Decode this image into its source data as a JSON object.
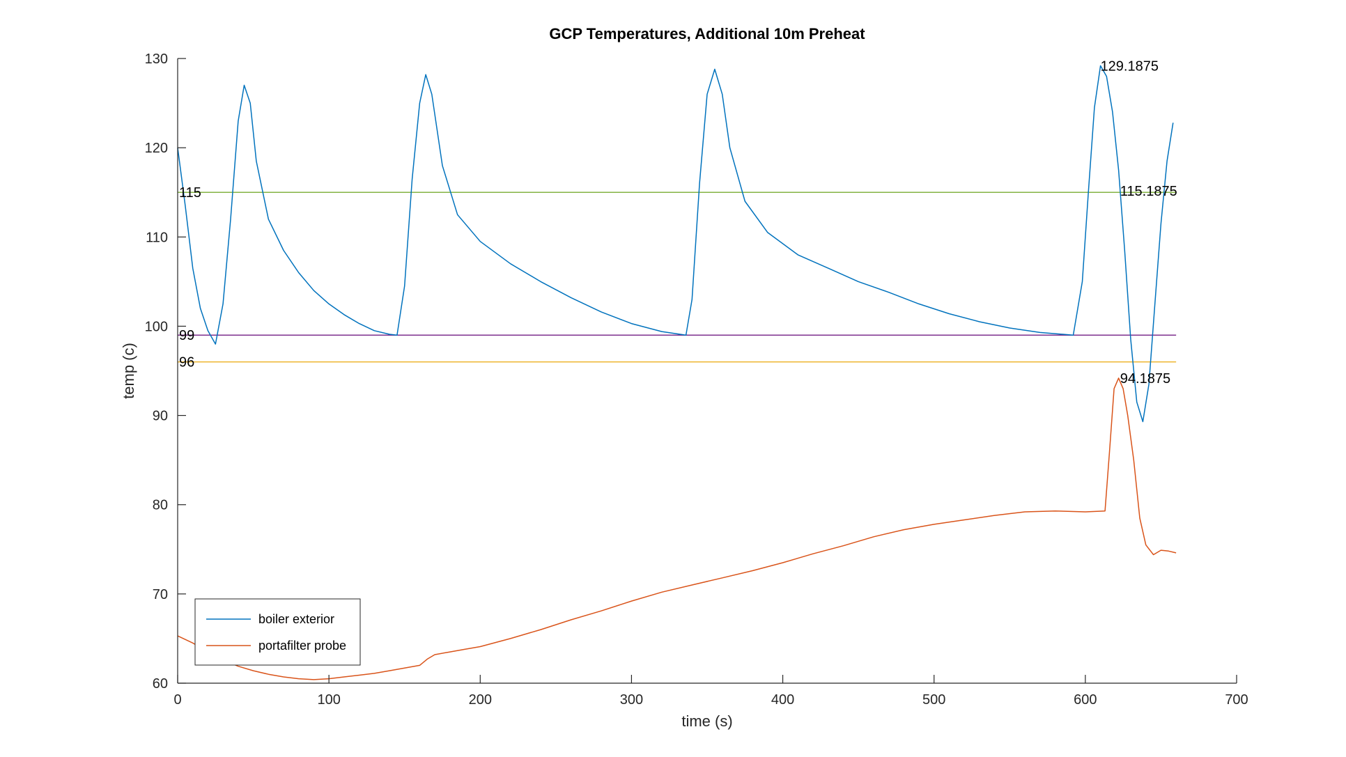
{
  "chart_data": {
    "type": "line",
    "title": "GCP Temperatures, Additional 10m Preheat",
    "xlabel": "time (s)",
    "ylabel": "temp (c)",
    "xlim": [
      0,
      700
    ],
    "ylim": [
      60,
      130
    ],
    "xticks": [
      0,
      100,
      200,
      300,
      400,
      500,
      600,
      700
    ],
    "yticks": [
      60,
      70,
      80,
      90,
      100,
      110,
      120,
      130
    ],
    "grid": false,
    "legend_position": "bottom-left",
    "series": [
      {
        "name": "boiler exterior",
        "color": "#0072BD",
        "x": [
          0,
          5,
          10,
          15,
          20,
          25,
          30,
          35,
          40,
          44,
          48,
          52,
          60,
          70,
          80,
          90,
          100,
          110,
          120,
          130,
          140,
          145,
          150,
          155,
          160,
          164,
          168,
          175,
          185,
          200,
          220,
          240,
          260,
          280,
          300,
          320,
          336,
          340,
          345,
          350,
          355,
          360,
          365,
          375,
          390,
          410,
          430,
          450,
          470,
          490,
          510,
          530,
          550,
          570,
          592,
          598,
          602,
          606,
          610,
          614,
          618,
          622,
          626,
          630,
          634,
          638,
          642,
          646,
          650,
          654,
          658
        ],
        "y": [
          120.0,
          113.5,
          106.5,
          102.0,
          99.5,
          98.0,
          102.5,
          112.0,
          123.0,
          127.0,
          125.0,
          118.5,
          112.0,
          108.5,
          106.0,
          104.0,
          102.5,
          101.3,
          100.3,
          99.5,
          99.1,
          99.0,
          104.5,
          116.5,
          125.0,
          128.2,
          126.0,
          118.0,
          112.5,
          109.5,
          107.0,
          105.0,
          103.2,
          101.6,
          100.3,
          99.4,
          99.0,
          103.0,
          116.0,
          126.0,
          128.8,
          126.0,
          120.0,
          114.0,
          110.5,
          108.0,
          106.5,
          105.0,
          103.8,
          102.5,
          101.4,
          100.5,
          99.8,
          99.3,
          99.0,
          105.0,
          115.0,
          124.5,
          129.1875,
          128.0,
          124.0,
          117.5,
          108.5,
          98.5,
          91.5,
          89.3,
          93.5,
          102.5,
          111.5,
          118.5,
          122.8
        ]
      },
      {
        "name": "portafilter probe",
        "color": "#D95319",
        "x": [
          0,
          10,
          20,
          30,
          40,
          50,
          60,
          70,
          80,
          90,
          100,
          110,
          120,
          130,
          140,
          150,
          160,
          165,
          170,
          180,
          190,
          200,
          220,
          240,
          260,
          280,
          300,
          320,
          340,
          360,
          380,
          400,
          420,
          440,
          460,
          480,
          500,
          520,
          540,
          560,
          580,
          600,
          613,
          616,
          619,
          622,
          625,
          628,
          632,
          636,
          640,
          645,
          650,
          655,
          660
        ],
        "y": [
          65.3,
          64.5,
          63.5,
          62.6,
          61.9,
          61.4,
          61.0,
          60.7,
          60.5,
          60.4,
          60.5,
          60.7,
          60.9,
          61.1,
          61.4,
          61.7,
          62.0,
          62.7,
          63.2,
          63.5,
          63.8,
          64.1,
          65.0,
          66.0,
          67.1,
          68.1,
          69.2,
          70.2,
          71.0,
          71.8,
          72.6,
          73.5,
          74.5,
          75.4,
          76.4,
          77.2,
          77.8,
          78.3,
          78.8,
          79.2,
          79.3,
          79.2,
          79.3,
          86.0,
          93.0,
          94.1875,
          93.0,
          90.0,
          85.0,
          78.5,
          75.5,
          74.4,
          74.9,
          74.8,
          74.6
        ]
      }
    ],
    "reference_lines": [
      {
        "y": 115,
        "color": "#77AC30",
        "label": "115"
      },
      {
        "y": 99,
        "color": "#7E2F8E",
        "label": "99"
      },
      {
        "y": 96,
        "color": "#EDB120",
        "label": "96"
      }
    ],
    "annotations": [
      {
        "x": 610,
        "y": 129.1875,
        "text": "129.1875"
      },
      {
        "x": 623,
        "y": 115.1875,
        "text": "115.1875"
      },
      {
        "x": 623,
        "y": 94.1875,
        "text": "94.1875"
      }
    ]
  }
}
